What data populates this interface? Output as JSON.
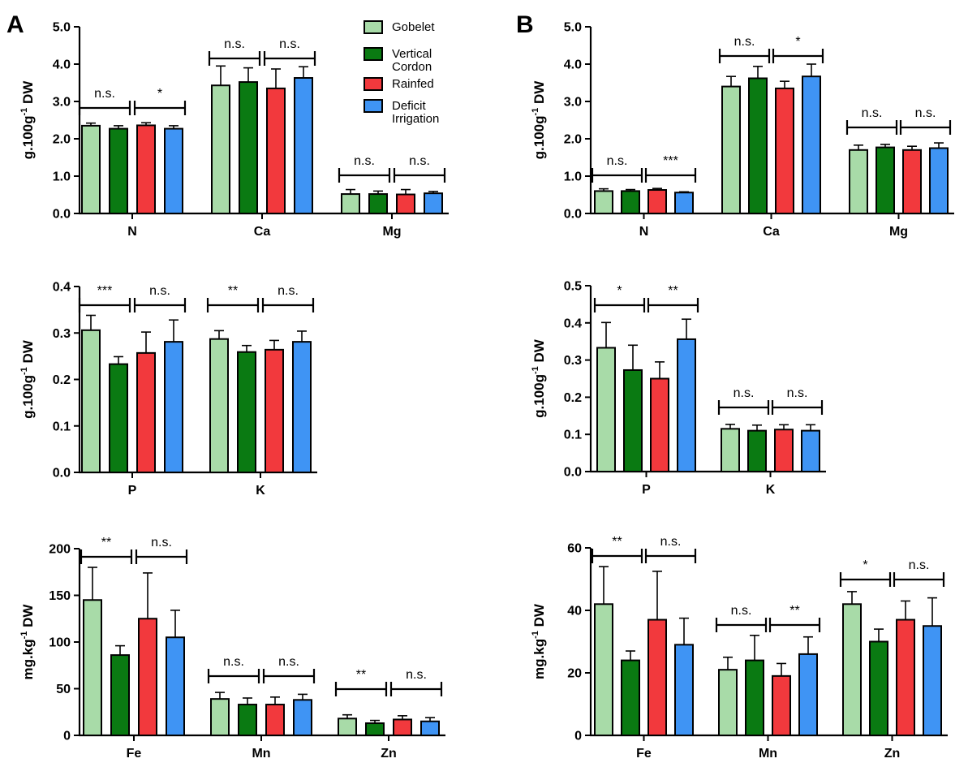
{
  "panel_labels": [
    "A",
    "B"
  ],
  "legend": [
    {
      "label_lines": [
        "Gobelet"
      ],
      "color": "#a8dba8"
    },
    {
      "label_lines": [
        "Vertical",
        "Cordon"
      ],
      "color": "#0a7a12"
    },
    {
      "label_lines": [
        "Rainfed"
      ],
      "color": "#f2393d"
    },
    {
      "label_lines": [
        "Deficit",
        "Irrigation"
      ],
      "color": "#3f94f4"
    }
  ],
  "series_colors": [
    "#a8dba8",
    "#0a7a12",
    "#f2393d",
    "#3f94f4"
  ],
  "chart_data": [
    {
      "id": "A-macro-1",
      "panel": "A",
      "type": "bar",
      "ylabel": "g.100g",
      "ylabel_sup": "-1",
      "ylabel_tail": " DW",
      "ylim": [
        0,
        5.0
      ],
      "yticks": [
        "0.0",
        "1.0",
        "2.0",
        "3.0",
        "4.0",
        "5.0"
      ],
      "categories": [
        "N",
        "Ca",
        "Mg"
      ],
      "series": [
        {
          "name": "Gobelet",
          "values": [
            2.35,
            3.43,
            0.52
          ],
          "errors": [
            0.07,
            0.52,
            0.12
          ]
        },
        {
          "name": "Vertical Cordon",
          "values": [
            2.27,
            3.52,
            0.52
          ],
          "errors": [
            0.08,
            0.38,
            0.08
          ]
        },
        {
          "name": "Rainfed",
          "values": [
            2.36,
            3.35,
            0.51
          ],
          "errors": [
            0.07,
            0.52,
            0.13
          ]
        },
        {
          "name": "Deficit Irrigation",
          "values": [
            2.27,
            3.63,
            0.54
          ],
          "errors": [
            0.08,
            0.3,
            0.05
          ]
        }
      ],
      "significance": [
        [
          "n.s.",
          "*"
        ],
        [
          "n.s.",
          "n.s."
        ],
        [
          "n.s.",
          "n.s."
        ]
      ]
    },
    {
      "id": "A-macro-2",
      "panel": "A",
      "type": "bar",
      "ylabel": "g.100g",
      "ylabel_sup": "-1",
      "ylabel_tail": " DW",
      "ylim": [
        0,
        0.4
      ],
      "yticks": [
        "0.0",
        "0.1",
        "0.2",
        "0.3",
        "0.4"
      ],
      "categories": [
        "P",
        "K"
      ],
      "series": [
        {
          "name": "Gobelet",
          "values": [
            0.306,
            0.287
          ],
          "errors": [
            0.032,
            0.018
          ]
        },
        {
          "name": "Vertical Cordon",
          "values": [
            0.233,
            0.259
          ],
          "errors": [
            0.016,
            0.014
          ]
        },
        {
          "name": "Rainfed",
          "values": [
            0.257,
            0.264
          ],
          "errors": [
            0.045,
            0.02
          ]
        },
        {
          "name": "Deficit Irrigation",
          "values": [
            0.281,
            0.281
          ],
          "errors": [
            0.047,
            0.023
          ]
        }
      ],
      "significance": [
        [
          "***",
          "n.s."
        ],
        [
          "**",
          "n.s."
        ]
      ]
    },
    {
      "id": "A-micro",
      "panel": "A",
      "type": "bar",
      "ylabel": "mg.kg",
      "ylabel_sup": "-1",
      "ylabel_tail": " DW",
      "ylim": [
        0,
        200
      ],
      "yticks": [
        "0",
        "50",
        "100",
        "150",
        "200"
      ],
      "categories": [
        "Fe",
        "Mn",
        "Zn"
      ],
      "series": [
        {
          "name": "Gobelet",
          "values": [
            145,
            39,
            18
          ],
          "errors": [
            35,
            7,
            4
          ]
        },
        {
          "name": "Vertical Cordon",
          "values": [
            86,
            33,
            13
          ],
          "errors": [
            10,
            7,
            3
          ]
        },
        {
          "name": "Rainfed",
          "values": [
            125,
            33,
            17
          ],
          "errors": [
            49,
            8,
            4
          ]
        },
        {
          "name": "Deficit Irrigation",
          "values": [
            105,
            38,
            15
          ],
          "errors": [
            29,
            6,
            4
          ]
        }
      ],
      "significance": [
        [
          "**",
          "n.s."
        ],
        [
          "n.s.",
          "n.s."
        ],
        [
          "**",
          "n.s."
        ]
      ]
    },
    {
      "id": "B-macro-1",
      "panel": "B",
      "type": "bar",
      "ylabel": "g.100g",
      "ylabel_sup": "-1",
      "ylabel_tail": " DW",
      "ylim": [
        0,
        5.0
      ],
      "yticks": [
        "0.0",
        "1.0",
        "2.0",
        "3.0",
        "4.0",
        "5.0"
      ],
      "categories": [
        "N",
        "Ca",
        "Mg"
      ],
      "series": [
        {
          "name": "Gobelet",
          "values": [
            0.6,
            3.4,
            1.7
          ],
          "errors": [
            0.06,
            0.27,
            0.13
          ]
        },
        {
          "name": "Vertical Cordon",
          "values": [
            0.6,
            3.62,
            1.77
          ],
          "errors": [
            0.04,
            0.32,
            0.08
          ]
        },
        {
          "name": "Rainfed",
          "values": [
            0.63,
            3.35,
            1.7
          ],
          "errors": [
            0.04,
            0.19,
            0.1
          ]
        },
        {
          "name": "Deficit Irrigation",
          "values": [
            0.56,
            3.67,
            1.75
          ],
          "errors": [
            0.02,
            0.33,
            0.14
          ]
        }
      ],
      "significance": [
        [
          "n.s.",
          "***"
        ],
        [
          "n.s.",
          "*"
        ],
        [
          "n.s.",
          "n.s."
        ]
      ]
    },
    {
      "id": "B-macro-2",
      "panel": "B",
      "type": "bar",
      "ylabel": "g.100g",
      "ylabel_sup": "-1",
      "ylabel_tail": " DW",
      "ylim": [
        0,
        0.5
      ],
      "yticks": [
        "0.0",
        "0.1",
        "0.2",
        "0.3",
        "0.4",
        "0.5"
      ],
      "categories": [
        "P",
        "K"
      ],
      "series": [
        {
          "name": "Gobelet",
          "values": [
            0.333,
            0.115
          ],
          "errors": [
            0.068,
            0.012
          ]
        },
        {
          "name": "Vertical Cordon",
          "values": [
            0.273,
            0.11
          ],
          "errors": [
            0.067,
            0.015
          ]
        },
        {
          "name": "Rainfed",
          "values": [
            0.25,
            0.113
          ],
          "errors": [
            0.045,
            0.013
          ]
        },
        {
          "name": "Deficit Irrigation",
          "values": [
            0.356,
            0.11
          ],
          "errors": [
            0.054,
            0.016
          ]
        }
      ],
      "significance": [
        [
          "*",
          "**"
        ],
        [
          "n.s.",
          "n.s."
        ]
      ]
    },
    {
      "id": "B-micro",
      "panel": "B",
      "type": "bar",
      "ylabel": "mg.kg",
      "ylabel_sup": "-1",
      "ylabel_tail": " DW",
      "ylim": [
        0,
        60
      ],
      "yticks": [
        "0",
        "20",
        "40",
        "60"
      ],
      "categories": [
        "Fe",
        "Mn",
        "Zn"
      ],
      "series": [
        {
          "name": "Gobelet",
          "values": [
            42,
            21,
            42
          ],
          "errors": [
            12,
            4,
            4
          ]
        },
        {
          "name": "Vertical Cordon",
          "values": [
            24,
            24,
            30
          ],
          "errors": [
            3,
            8,
            4
          ]
        },
        {
          "name": "Rainfed",
          "values": [
            37,
            19,
            37
          ],
          "errors": [
            15.5,
            4,
            6
          ]
        },
        {
          "name": "Deficit Irrigation",
          "values": [
            29,
            26,
            35
          ],
          "errors": [
            8.5,
            5.5,
            9
          ]
        }
      ],
      "significance": [
        [
          "**",
          "n.s."
        ],
        [
          "n.s.",
          "**"
        ],
        [
          "*",
          "n.s."
        ]
      ]
    }
  ]
}
